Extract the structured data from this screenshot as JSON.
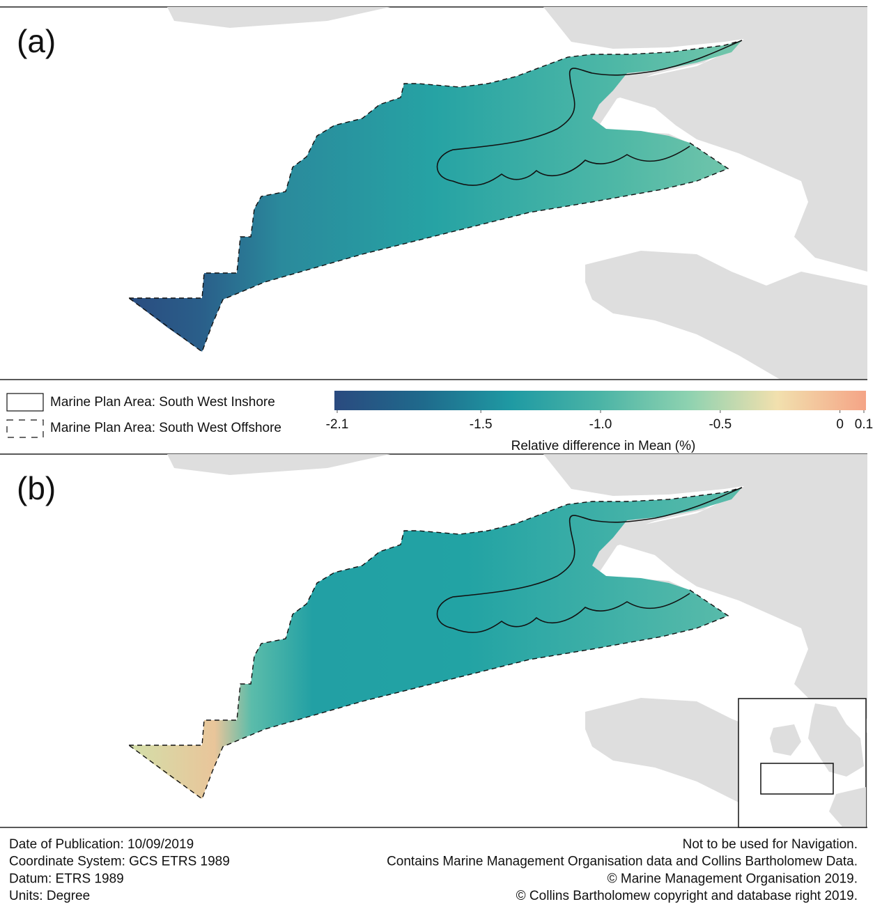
{
  "panels": [
    {
      "label": "(a)"
    },
    {
      "label": "(b)"
    }
  ],
  "legend": {
    "items": [
      "Marine Plan Area: South West Inshore",
      "Marine Plan Area: South West Offshore"
    ]
  },
  "colorbar": {
    "title": "Relative difference in Mean (%)",
    "lim": [
      -2.1,
      0.1
    ],
    "ticks": [
      -2.1,
      -1.5,
      {
        "value": -1,
        "label": "-1.0"
      },
      -0.5,
      0,
      0.1
    ],
    "colors": [
      "#2a4a7f",
      "#1f6a8c",
      "#1f9aa3",
      "#4bb4a6",
      "#8ed2b0",
      "#f2e0ae",
      "#f4a486"
    ]
  },
  "footer": {
    "left": [
      "Date of Publication: 10/09/2019",
      "Coordinate System: GCS ETRS 1989",
      "Datum: ETRS 1989",
      "Units: Degree"
    ],
    "right": [
      "Not to be used for Navigation.",
      "Contains Marine Management Organisation data and Collins Bartholomew Data.",
      "© Marine Management Organisation 2019.",
      "© Collins Bartholomew copyright and database right 2019."
    ]
  }
}
